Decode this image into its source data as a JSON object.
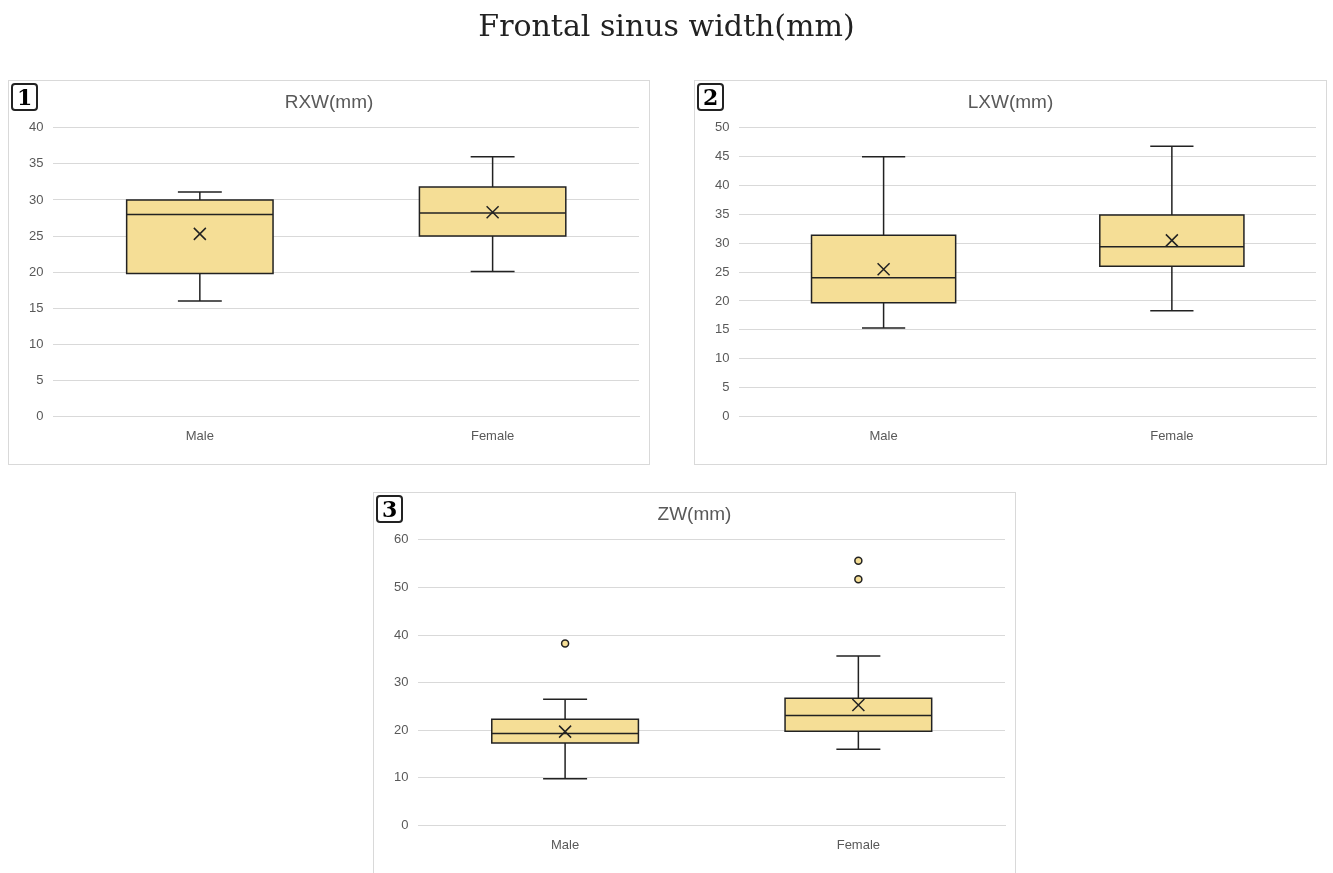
{
  "chart_data": [
    {
      "type": "box",
      "title": "RXW(mm)",
      "annotations": [
        "Frontal sinus width(mm)",
        "1"
      ],
      "categories": [
        "Male",
        "Female"
      ],
      "color": "#f5de96",
      "marker": "cross",
      "grid": "y",
      "ylim": [
        0,
        40
      ],
      "yticks": [
        0,
        5,
        10,
        15,
        20,
        25,
        30,
        35,
        40
      ],
      "boxes": [
        {
          "low": 16,
          "q1": 19.8,
          "median": 28,
          "q3": 30,
          "high": 31.1,
          "mean": 25.3
        },
        {
          "low": 20.1,
          "q1": 25,
          "median": 28.2,
          "q3": 31.8,
          "high": 36,
          "mean": 28.3
        }
      ]
    },
    {
      "type": "box",
      "title": "LXW(mm)",
      "annotations": [
        "2"
      ],
      "categories": [
        "Male",
        "Female"
      ],
      "color": "#f5de96",
      "marker": "cross",
      "grid": "y",
      "ylim": [
        0,
        50
      ],
      "yticks": [
        0,
        5,
        10,
        15,
        20,
        25,
        30,
        35,
        40,
        45,
        50
      ],
      "boxes": [
        {
          "low": 15.3,
          "q1": 19.7,
          "median": 24,
          "q3": 31.4,
          "high": 45,
          "mean": 25.5
        },
        {
          "low": 18.3,
          "q1": 26,
          "median": 29.4,
          "q3": 34.9,
          "high": 46.8,
          "mean": 30.5
        }
      ]
    },
    {
      "type": "box",
      "title": "ZW(mm)",
      "annotations": [
        "3"
      ],
      "categories": [
        "Male",
        "Female"
      ],
      "color": "#f5de96",
      "marker": "cross",
      "grid": "y",
      "ylim": [
        0,
        60
      ],
      "yticks": [
        0,
        10,
        20,
        30,
        40,
        50,
        60
      ],
      "boxes": [
        {
          "low": 9.8,
          "q1": 17.3,
          "median": 19.3,
          "q3": 22.3,
          "high": 26.5,
          "mean": 19.7,
          "outliers": [
            38.2
          ]
        },
        {
          "low": 16,
          "q1": 19.8,
          "median": 23.1,
          "q3": 26.7,
          "high": 35.6,
          "mean": 25.3,
          "outliers": [
            51.7,
            55.6
          ]
        }
      ]
    }
  ]
}
